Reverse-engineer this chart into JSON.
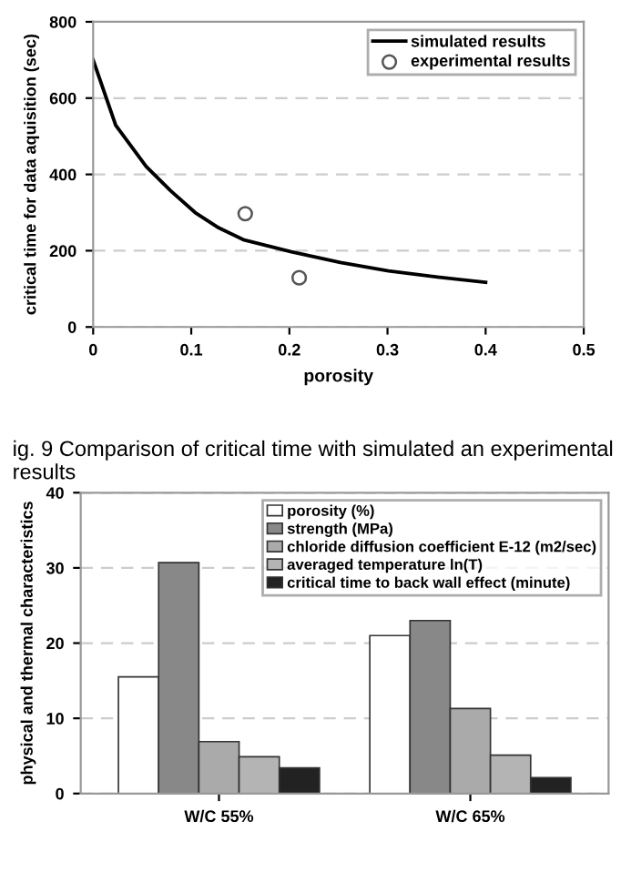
{
  "chart_data": [
    {
      "type": "line",
      "xlabel": "porosity",
      "ylabel": "critical time for data aquisition (sec)",
      "xlim": [
        0,
        0.5
      ],
      "xticks": [
        0,
        0.1,
        0.2,
        0.3,
        0.4,
        0.5
      ],
      "ylim": [
        0,
        800
      ],
      "yticks": [
        0,
        200,
        400,
        600,
        800
      ],
      "grid": "y",
      "legend": "top right",
      "annotations": [
        "ig. 9 Comparison of critical time with simulated an experimental results"
      ],
      "series": [
        {
          "name": "simulated results",
          "type": "line",
          "color": "#000000",
          "marker": "none",
          "x": [
            0,
            0.023,
            0.054,
            0.079,
            0.104,
            0.128,
            0.153,
            0.202,
            0.252,
            0.301,
            0.351,
            0.4
          ],
          "values": [
            700,
            529,
            421,
            357,
            300,
            260,
            229,
            197,
            169,
            147,
            131,
            117
          ]
        },
        {
          "name": "experimental results",
          "type": "scatter",
          "color": "#555555",
          "marker": "circle",
          "x": [
            0.155,
            0.21
          ],
          "values": [
            297,
            129
          ]
        }
      ]
    },
    {
      "type": "bar",
      "ylabel": "physical and thermal characteristics",
      "categories": [
        "W/C 55%",
        "W/C 65%"
      ],
      "ylim": [
        0,
        40
      ],
      "yticks": [
        0,
        10,
        20,
        30,
        40
      ],
      "grid": "y",
      "legend": "top right",
      "series": [
        {
          "name": "porosity (%)",
          "color": "#ffffff",
          "values": [
            15.5,
            21
          ]
        },
        {
          "name": "strength (MPa)",
          "color": "#888888",
          "values": [
            30.7,
            23
          ]
        },
        {
          "name": "chloride diffusion coefficient E-12 (m2/sec)",
          "color": "#aaaaaa",
          "values": [
            6.9,
            11.3
          ]
        },
        {
          "name": "averaged temperature ln(T)",
          "color": "#b4b4b4",
          "values": [
            4.9,
            5.1
          ]
        },
        {
          "name": "critical time to back wall effect (minute)",
          "color": "#222222",
          "values": [
            3.4,
            2.1
          ]
        }
      ]
    }
  ]
}
